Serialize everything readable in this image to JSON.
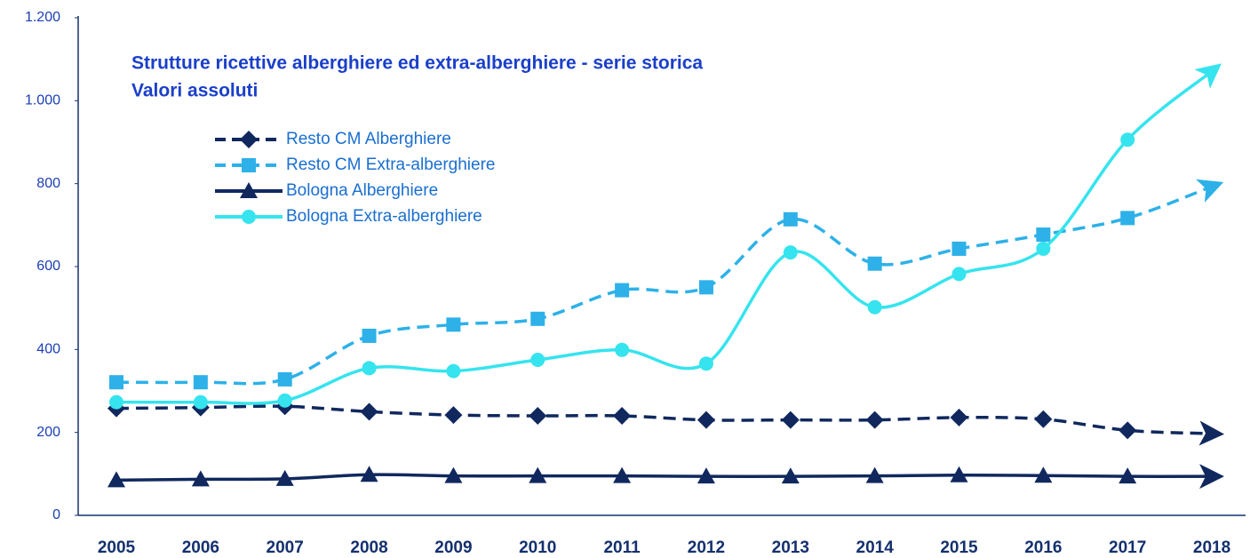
{
  "chart_data": {
    "type": "line",
    "title": "Strutture ricettive alberghiere ed extra-alberghiere - serie storica",
    "subtitle": "Valori assoluti",
    "categories": [
      "2005",
      "2006",
      "2007",
      "2008",
      "2009",
      "2010",
      "2011",
      "2012",
      "2013",
      "2014",
      "2015",
      "2016",
      "2017",
      "2018"
    ],
    "series": [
      {
        "name": "Resto CM  Alberghiere",
        "color": "#10285e",
        "dashed": true,
        "marker": "diamond",
        "values": [
          258,
          260,
          263,
          250,
          242,
          240,
          240,
          230,
          230,
          230,
          236,
          232,
          205,
          197
        ]
      },
      {
        "name": "Resto CM  Extra-alberghiere",
        "color": "#2db1e8",
        "dashed": true,
        "marker": "square",
        "values": [
          321,
          321,
          328,
          433,
          460,
          474,
          543,
          550,
          714,
          607,
          643,
          677,
          717,
          793
        ]
      },
      {
        "name": "Bologna Alberghiere",
        "color": "#10285e",
        "dashed": false,
        "marker": "triangle",
        "values": [
          85,
          87,
          88,
          98,
          95,
          95,
          95,
          94,
          94,
          95,
          97,
          96,
          94,
          94
        ]
      },
      {
        "name": "Bologna Extra-alberghiere",
        "color": "#35e4ee",
        "dashed": false,
        "marker": "circle",
        "values": [
          273,
          273,
          277,
          355,
          348,
          375,
          399,
          366,
          634,
          502,
          582,
          643,
          906,
          1071
        ]
      }
    ],
    "ylim": [
      0,
      1200
    ],
    "yticks": [
      0,
      200,
      400,
      600,
      800,
      {
        "value": 1000,
        "label": "1.000"
      },
      {
        "value": 1200,
        "label": "1.200"
      }
    ],
    "grid": false
  }
}
